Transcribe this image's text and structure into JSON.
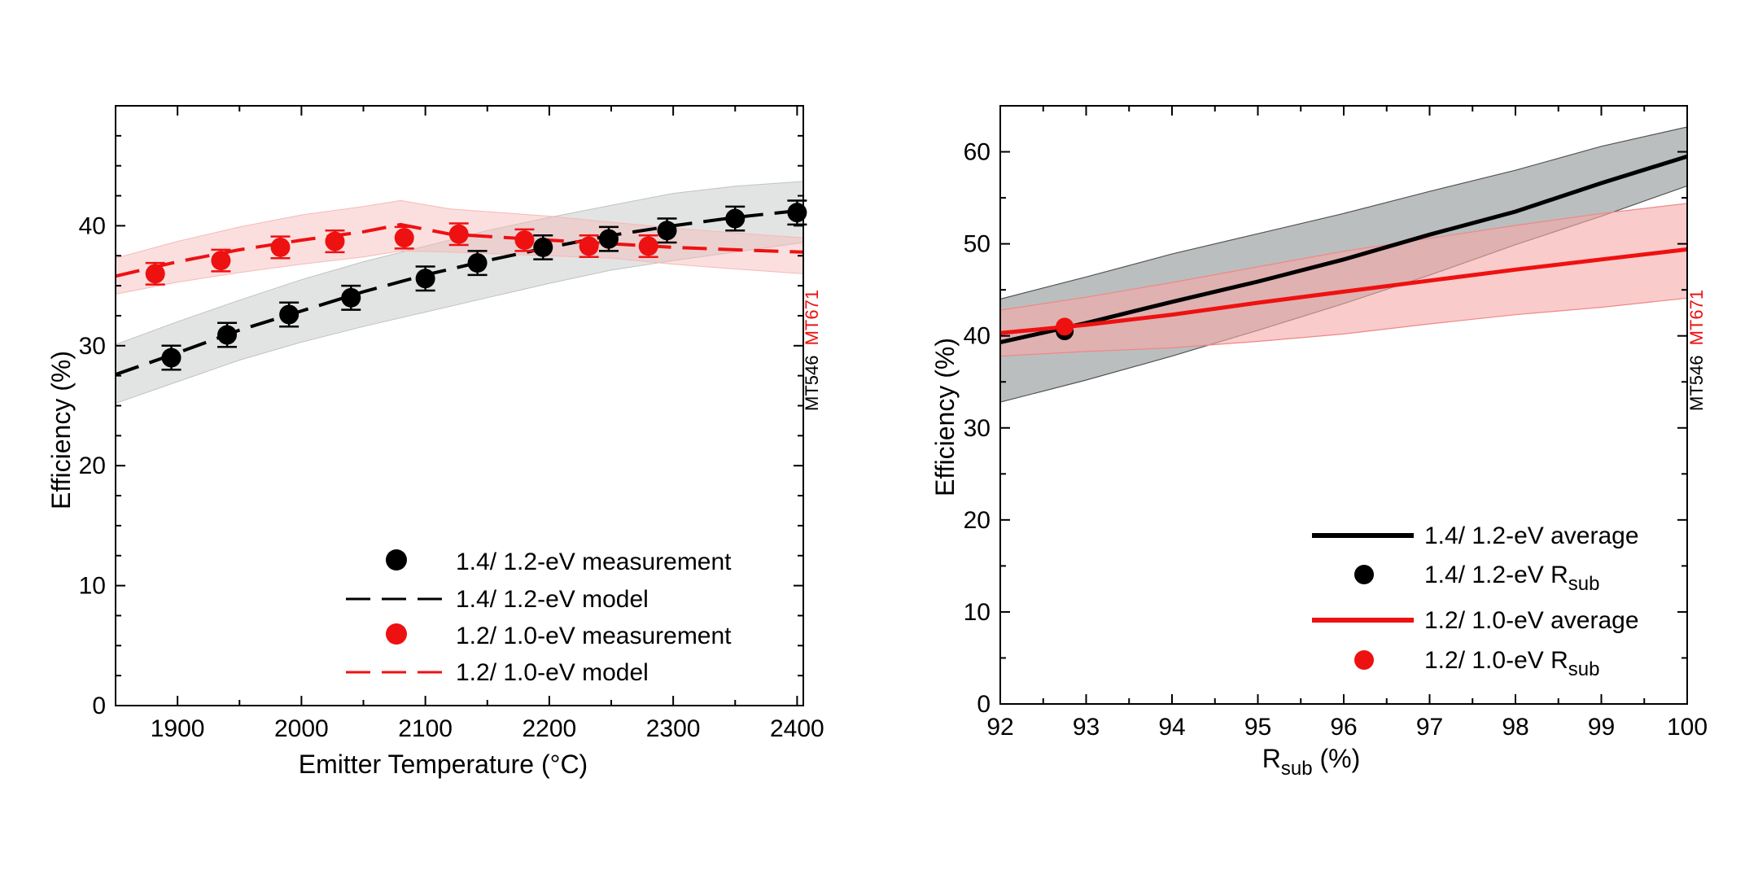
{
  "colors": {
    "black_series": "#000000",
    "red_series": "#ee1111",
    "black_band": "#bfc3c0",
    "red_band": "#f6b8b8",
    "right_black_band": "#8e9293",
    "right_red_band": "#f7a9a9"
  },
  "chart_data": [
    {
      "type": "scatter",
      "xlabel": "Emitter Temperature (°C)",
      "ylabel": "Efficiency (%)",
      "xlim": [
        1850,
        2405
      ],
      "ylim": [
        0,
        50
      ],
      "xticks": [
        "1900",
        "2000",
        "2100",
        "2200",
        "2300",
        "2400"
      ],
      "yticks": [
        "0",
        "10",
        "20",
        "30",
        "40"
      ],
      "side_labels": [
        "MT546",
        "MT671"
      ],
      "legend": {
        "position": "lower-right",
        "entries": [
          "1.4/ 1.2-eV measurement",
          "1.4/ 1.2-eV model",
          "1.2/ 1.0-eV measurement",
          "1.2/ 1.0-eV model"
        ]
      },
      "series": [
        {
          "name": "1.4/ 1.2-eV measurement",
          "color": "#000000",
          "x": [
            1895,
            1940,
            1990,
            2040,
            2100,
            2142,
            2195,
            2248,
            2295,
            2350,
            2400
          ],
          "y": [
            29.0,
            30.9,
            32.6,
            34.0,
            35.6,
            36.9,
            38.2,
            38.9,
            39.6,
            40.6,
            41.1
          ],
          "yerr": 1.0
        },
        {
          "name": "1.4/ 1.2-eV model",
          "color": "#000000",
          "x": [
            1850,
            1900,
            1950,
            2000,
            2050,
            2100,
            2150,
            2200,
            2250,
            2300,
            2350,
            2405
          ],
          "y": [
            27.6,
            29.4,
            31.3,
            32.9,
            34.5,
            35.9,
            37.1,
            38.2,
            39.2,
            40.0,
            40.7,
            41.3
          ],
          "band_lower": [
            25.2,
            27.0,
            28.8,
            30.3,
            31.6,
            32.8,
            34.0,
            35.2,
            36.3,
            37.1,
            37.8,
            38.6
          ],
          "band_upper": [
            30.1,
            32.0,
            33.8,
            35.5,
            37.0,
            38.3,
            39.6,
            40.7,
            41.7,
            42.7,
            43.3,
            43.7
          ]
        },
        {
          "name": "1.2/ 1.0-eV measurement",
          "color": "#ee1111",
          "x": [
            1882,
            1935,
            1983,
            2027,
            2083,
            2127,
            2180,
            2232,
            2280
          ],
          "y": [
            36.0,
            37.1,
            38.2,
            38.7,
            39.0,
            39.3,
            38.8,
            38.3,
            38.3
          ],
          "yerr": 0.9
        },
        {
          "name": "1.2/ 1.0-eV model",
          "color": "#ee1111",
          "x": [
            1850,
            1900,
            1950,
            2000,
            2050,
            2080,
            2120,
            2200,
            2250,
            2300,
            2350,
            2405
          ],
          "y": [
            35.8,
            37.0,
            38.0,
            38.8,
            39.5,
            40.1,
            39.3,
            38.8,
            38.5,
            38.2,
            38.0,
            37.8
          ],
          "band_lower": [
            34.3,
            35.3,
            36.1,
            36.8,
            37.4,
            37.9,
            37.8,
            37.5,
            37.3,
            36.8,
            36.4,
            36.0
          ],
          "band_upper": [
            37.3,
            38.7,
            39.9,
            40.9,
            41.6,
            42.1,
            41.4,
            40.8,
            40.3,
            39.8,
            39.4,
            39.0
          ]
        }
      ]
    },
    {
      "type": "line",
      "xlabel_main": "R",
      "xlabel_sub": "sub",
      "xlabel_tail": " (%)",
      "ylabel": "Efficiency (%)",
      "xlim": [
        92,
        100
      ],
      "ylim": [
        0,
        65
      ],
      "xticks": [
        "92",
        "93",
        "94",
        "95",
        "96",
        "97",
        "98",
        "99",
        "100"
      ],
      "yticks": [
        "0",
        "10",
        "20",
        "30",
        "40",
        "50",
        "60"
      ],
      "side_labels": [
        "MT546",
        "MT671"
      ],
      "legend": {
        "position": "lower-right",
        "entries": [
          {
            "main": "1.4/ 1.2-eV average",
            "sub": ""
          },
          {
            "main": "1.4/ 1.2-eV R",
            "sub": "sub"
          },
          {
            "main": "1.2/ 1.0-eV average",
            "sub": ""
          },
          {
            "main": "1.2/ 1.0-eV R",
            "sub": "sub"
          }
        ]
      },
      "series": [
        {
          "name": "1.4/ 1.2-eV average",
          "color": "#000000",
          "x": [
            92,
            93,
            94,
            95,
            96,
            97,
            98,
            99,
            100
          ],
          "y": [
            39.3,
            41.4,
            43.7,
            45.9,
            48.3,
            51.0,
            53.5,
            56.6,
            59.5
          ],
          "band_lower": [
            32.8,
            35.2,
            37.8,
            40.6,
            43.5,
            46.6,
            49.9,
            53.0,
            56.3
          ],
          "band_upper": [
            44.0,
            46.4,
            48.9,
            51.1,
            53.3,
            55.7,
            58.0,
            60.6,
            62.7
          ]
        },
        {
          "name": "1.4/ 1.2-eV R",
          "color": "#000000",
          "x": [
            92.75
          ],
          "y": [
            40.5
          ]
        },
        {
          "name": "1.2/ 1.0-eV average",
          "color": "#ee1111",
          "x": [
            92,
            93,
            94,
            95,
            96,
            97,
            98,
            99,
            100
          ],
          "y": [
            40.3,
            41.2,
            42.3,
            43.6,
            44.8,
            46.0,
            47.2,
            48.3,
            49.4
          ],
          "band_lower": [
            37.8,
            38.3,
            38.7,
            39.4,
            40.2,
            41.3,
            42.3,
            43.1,
            44.1
          ],
          "band_upper": [
            42.8,
            44.2,
            45.8,
            47.5,
            49.2,
            50.6,
            52.0,
            53.3,
            54.4
          ]
        },
        {
          "name": "1.2/ 1.0-eV R",
          "color": "#ee1111",
          "x": [
            92.75
          ],
          "y": [
            41.0
          ]
        }
      ]
    }
  ]
}
